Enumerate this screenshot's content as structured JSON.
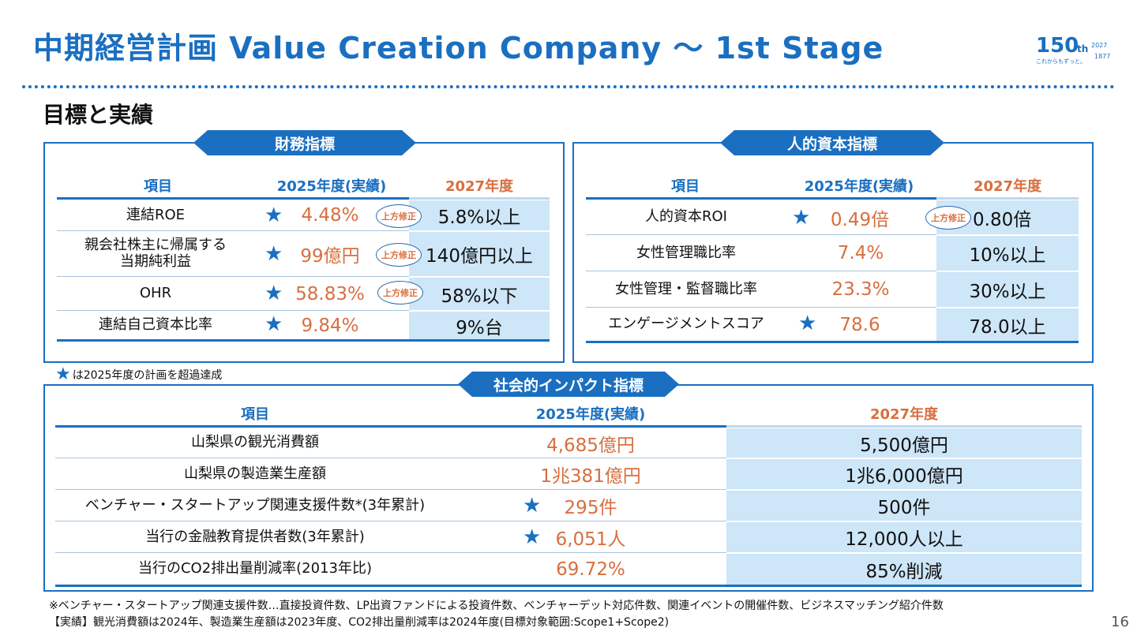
{
  "header": {
    "title": "中期経営計画  Value Creation Company ～ 1st Stage",
    "logo_number": "150",
    "logo_th": "th",
    "logo_year_top": "2027",
    "logo_year_bottom": "1877",
    "logo_tagline": "これからもずっと。"
  },
  "subtitle": "目標と実績",
  "colors": {
    "primary": "#1a6fc1",
    "accent_orange": "#d86f3f",
    "target_bg": "#cde6f8"
  },
  "financial": {
    "banner": "財務指標",
    "columns": [
      "項目",
      "2025年度(実績)",
      "2027年度"
    ],
    "rows": [
      {
        "label": "連結ROE",
        "star": true,
        "actual": "4.48%",
        "badge": "上方修正",
        "target": "5.8%以上"
      },
      {
        "label_line1": "親会社株主に帰属する",
        "label_line2": "当期純利益",
        "star": true,
        "actual": "99億円",
        "badge": "上方修正",
        "target": "140億円以上"
      },
      {
        "label": "OHR",
        "star": true,
        "actual": "58.83%",
        "badge": "上方修正",
        "target": "58%以下"
      },
      {
        "label": "連結自己資本比率",
        "star": true,
        "actual": "9.84%",
        "target": "9%台"
      }
    ]
  },
  "human": {
    "banner": "人的資本指標",
    "columns": [
      "項目",
      "2025年度(実績)",
      "2027年度"
    ],
    "rows": [
      {
        "label": "人的資本ROI",
        "star": true,
        "actual": "0.49倍",
        "badge": "上方修正",
        "target": "0.80倍"
      },
      {
        "label": "女性管理職比率",
        "star": false,
        "actual": "7.4%",
        "target": "10%以上"
      },
      {
        "label": "女性管理・監督職比率",
        "star": false,
        "actual": "23.3%",
        "target": "30%以上"
      },
      {
        "label": "エンゲージメントスコア",
        "star": true,
        "actual": "78.6",
        "target": "78.0以上"
      }
    ]
  },
  "legend": "は2025年度の計画を超過達成",
  "social": {
    "banner": "社会的インパクト指標",
    "columns": [
      "項目",
      "2025年度(実績)",
      "2027年度"
    ],
    "rows": [
      {
        "label": "山梨県の観光消費額",
        "star": false,
        "actual": "4,685億円",
        "target": "5,500億円"
      },
      {
        "label": "山梨県の製造業生産額",
        "star": false,
        "actual": "1兆381億円",
        "target": "1兆6,000億円"
      },
      {
        "label": "ベンチャー・スタートアップ関連支援件数*(3年累計)",
        "star": true,
        "actual": "295件",
        "target": "500件"
      },
      {
        "label": "当行の金融教育提供者数(3年累計)",
        "star": true,
        "actual": "6,051人",
        "target": "12,000人以上"
      },
      {
        "label": "当行のCO2排出量削減率(2013年比)",
        "star": false,
        "actual": "69.72%",
        "target": "85%削減"
      }
    ]
  },
  "footnotes": [
    "※ベンチャー・スタートアップ関連支援件数…直接投資件数、LP出資ファンドによる投資件数、ベンチャーデット対応件数、関連イベントの開催件数、ビジネスマッチング紹介件数",
    "【実績】観光消費額は2024年、製造業生産額は2023年度、CO2排出量削減率は2024年度(目標対象範囲:Scope1+Scope2)"
  ],
  "page_number": "16"
}
